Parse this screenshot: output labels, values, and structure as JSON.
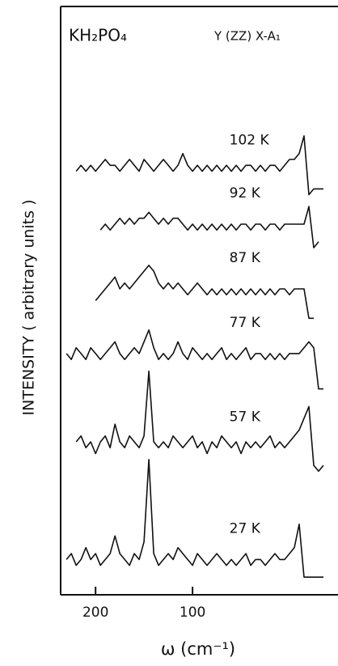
{
  "chart_data": {
    "type": "line",
    "title": "KH₂PO₄",
    "subtitle": "Y (ZZ) X-A₁",
    "x_label": "ω (cm⁻¹)",
    "y_label": "INTENSITY ( arbitrary units )",
    "xlim": [
      236,
      -50
    ],
    "xticks": [
      200,
      100
    ],
    "ylim": [
      0,
      100
    ],
    "color": "#111111",
    "x": [
      230,
      225,
      220,
      215,
      210,
      205,
      200,
      195,
      190,
      185,
      180,
      175,
      170,
      165,
      160,
      155,
      150,
      145,
      140,
      135,
      130,
      125,
      120,
      115,
      110,
      105,
      100,
      95,
      90,
      85,
      80,
      75,
      70,
      65,
      60,
      55,
      50,
      45,
      40,
      35,
      30,
      25,
      20,
      15,
      10,
      5,
      0,
      -5,
      -10,
      -15,
      -20,
      -25,
      -30,
      -35
    ],
    "series": [
      {
        "name": "102 K",
        "values": [
          null,
          null,
          72,
          73,
          72,
          73,
          72,
          73,
          74,
          73,
          73,
          72,
          73,
          74,
          73,
          72,
          74,
          73,
          72,
          73,
          74,
          73,
          72,
          73,
          75,
          73,
          72,
          73,
          72,
          73,
          72,
          73,
          72,
          73,
          72,
          73,
          72,
          73,
          73,
          72,
          73,
          72,
          73,
          73,
          72,
          73,
          74,
          74,
          75,
          78,
          68,
          69,
          69,
          69
        ]
      },
      {
        "name": "92 K",
        "values": [
          null,
          null,
          null,
          null,
          null,
          null,
          null,
          62,
          63,
          62,
          63,
          64,
          63,
          64,
          63,
          64,
          64,
          65,
          64,
          63,
          64,
          63,
          64,
          64,
          63,
          62,
          63,
          62,
          63,
          62,
          63,
          62,
          63,
          62,
          63,
          62,
          63,
          63,
          62,
          63,
          63,
          62,
          63,
          63,
          62,
          63,
          63,
          63,
          63,
          63,
          66,
          59,
          60,
          null
        ]
      },
      {
        "name": "87 K",
        "values": [
          null,
          null,
          null,
          null,
          null,
          null,
          50,
          51,
          52,
          53,
          54,
          52,
          53,
          52,
          53,
          54,
          55,
          56,
          55,
          53,
          52,
          53,
          52,
          53,
          52,
          51,
          52,
          53,
          52,
          51,
          52,
          51,
          52,
          51,
          52,
          51,
          52,
          51,
          52,
          51,
          52,
          51,
          52,
          51,
          52,
          52,
          51,
          52,
          52,
          52,
          47,
          47,
          null,
          null
        ]
      },
      {
        "name": "77 K",
        "values": [
          41,
          40,
          42,
          41,
          40,
          42,
          41,
          40,
          41,
          42,
          43,
          41,
          40,
          41,
          42,
          41,
          43,
          45,
          42,
          40,
          41,
          40,
          41,
          43,
          41,
          40,
          42,
          41,
          40,
          41,
          40,
          41,
          42,
          40,
          41,
          40,
          41,
          42,
          40,
          41,
          41,
          40,
          41,
          40,
          41,
          40,
          41,
          41,
          41,
          42,
          43,
          42,
          35,
          35
        ]
      },
      {
        "name": "57 K",
        "values": [
          null,
          null,
          26,
          27,
          25,
          26,
          24,
          26,
          27,
          25,
          29,
          26,
          25,
          27,
          26,
          25,
          27,
          38,
          26,
          25,
          26,
          25,
          27,
          26,
          25,
          26,
          27,
          25,
          26,
          24,
          26,
          25,
          27,
          26,
          25,
          26,
          24,
          26,
          25,
          26,
          25,
          26,
          27,
          25,
          26,
          25,
          26,
          27,
          28,
          30,
          32,
          22,
          21,
          22
        ]
      },
      {
        "name": "27 K",
        "values": [
          6,
          7,
          5,
          6,
          8,
          6,
          7,
          5,
          6,
          7,
          10,
          7,
          6,
          5,
          7,
          6,
          9,
          23,
          7,
          5,
          6,
          7,
          6,
          8,
          7,
          6,
          5,
          7,
          6,
          5,
          6,
          7,
          6,
          5,
          6,
          5,
          6,
          7,
          5,
          6,
          6,
          5,
          6,
          7,
          6,
          6,
          7,
          8,
          12,
          3,
          3,
          3,
          3,
          3
        ]
      }
    ]
  }
}
